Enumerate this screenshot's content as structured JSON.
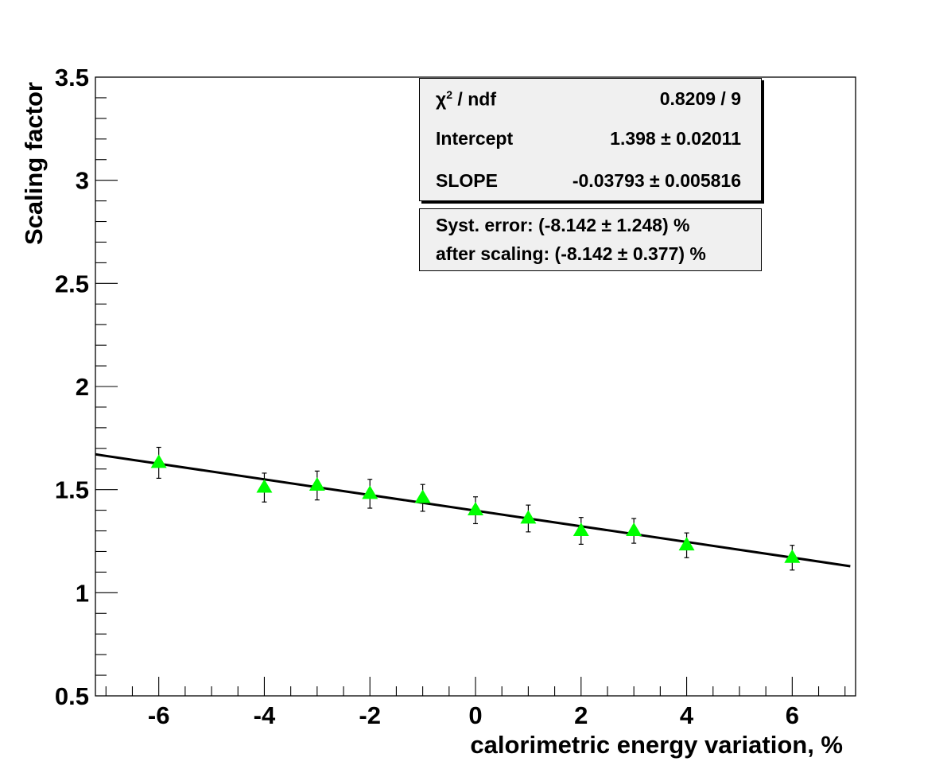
{
  "chart_data": {
    "type": "scatter",
    "xlabel": "calorimetric energy variation, %",
    "ylabel": "Scaling factor",
    "xlim": [
      -7.2,
      7.2
    ],
    "ylim": [
      0.5,
      3.5
    ],
    "x_ticks": [
      "-6",
      "-4",
      "-2",
      "0",
      "2",
      "4",
      "6"
    ],
    "x_tick_values": [
      -6,
      -4,
      -2,
      0,
      2,
      4,
      6
    ],
    "y_ticks": [
      "0.5",
      "1",
      "1.5",
      "2",
      "2.5",
      "3",
      "3.5"
    ],
    "y_tick_values": [
      0.5,
      1,
      1.5,
      2,
      2.5,
      3,
      3.5
    ],
    "series": [
      {
        "marker": "triangle",
        "color": "#00ff00",
        "x": [
          -6,
          -4,
          -3,
          -2,
          -1,
          0,
          1,
          2,
          3,
          4,
          6
        ],
        "y": [
          1.63,
          1.51,
          1.52,
          1.48,
          1.46,
          1.4,
          1.36,
          1.3,
          1.3,
          1.23,
          1.17
        ],
        "yerr": [
          0.075,
          0.07,
          0.07,
          0.07,
          0.065,
          0.065,
          0.065,
          0.065,
          0.06,
          0.06,
          0.06
        ]
      }
    ],
    "fit": {
      "intercept": 1.398,
      "slope": -0.03793,
      "color": "#000000"
    },
    "grid": false
  },
  "stats_box": {
    "chi2_label": "χ",
    "chi2_sup": "2",
    "chi2_suffix": " / ndf",
    "chi2_value": "0.8209 / 9",
    "intercept_label": "Intercept",
    "intercept_value": "1.398 ± 0.02011",
    "slope_label": "SLOPE",
    "slope_value": "-0.03793 ± 0.005816"
  },
  "syst_box": {
    "line1": "Syst. error: (-8.142 ± 1.248) %",
    "line2": "after scaling: (-8.142 ± 0.377) %"
  }
}
